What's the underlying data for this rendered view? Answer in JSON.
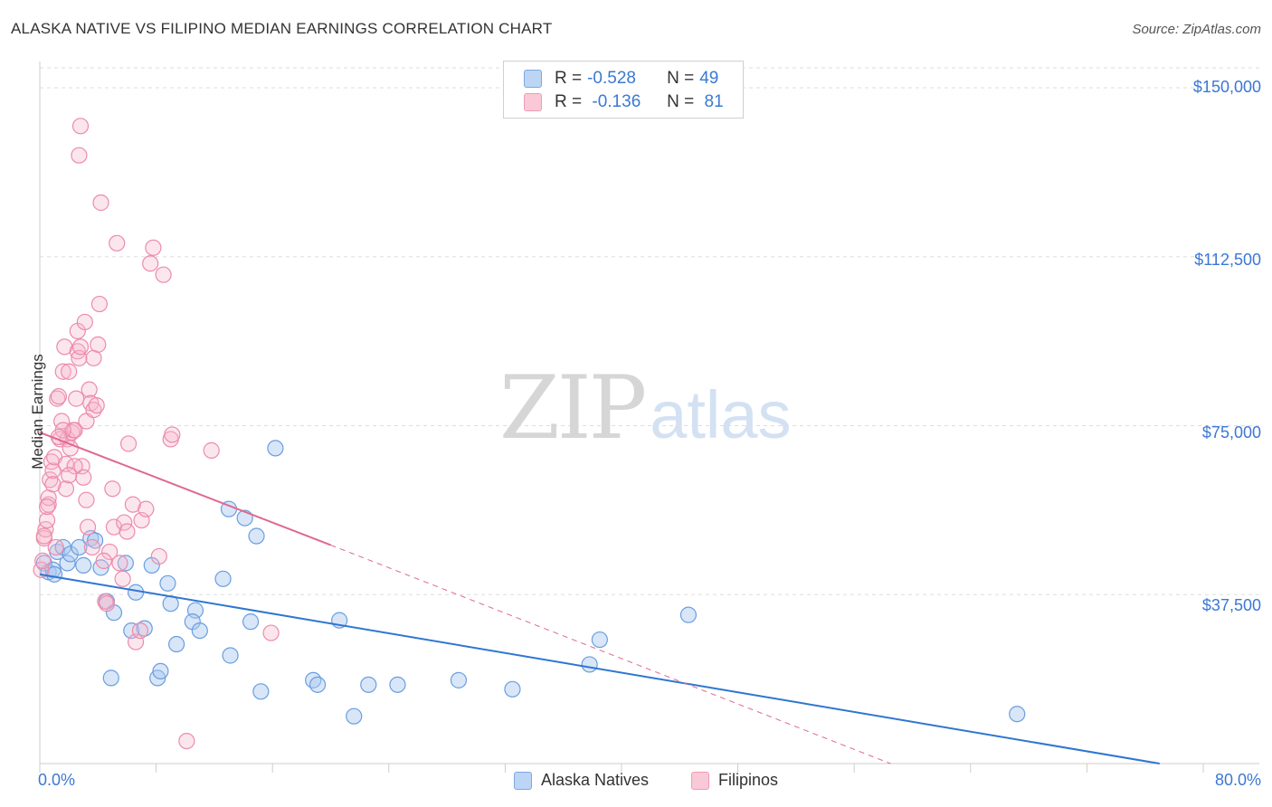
{
  "title": "ALASKA NATIVE VS FILIPINO MEDIAN EARNINGS CORRELATION CHART",
  "source": "Source: ZipAtlas.com",
  "watermark": {
    "zip": "ZIP",
    "atlas": "atlas"
  },
  "legend_top": {
    "rows": [
      {
        "r_label": "R = ",
        "r_value": "-0.528",
        "n_label": "N = ",
        "n_value": "49"
      },
      {
        "r_label": "R = ",
        "r_value": " -0.136",
        "n_label": "N = ",
        "n_value": " 81"
      }
    ]
  },
  "colors": {
    "blue_fill": "#a8c8f0",
    "blue_stroke": "#6a9ee0",
    "blue_line": "#2f76d0",
    "pink_fill": "#f7b8cc",
    "pink_stroke": "#ec8bab",
    "pink_line": "#e06890",
    "tick_text": "#3b78d4",
    "grid": "#dddddd"
  },
  "chart_data": {
    "type": "scatter",
    "title": "ALASKA NATIVE VS FILIPINO MEDIAN EARNINGS CORRELATION CHART",
    "xlabel": "",
    "ylabel": "Median Earnings",
    "xlim": [
      0,
      80
    ],
    "ylim": [
      0,
      155000
    ],
    "x_tick_labels": [
      "0.0%",
      "80.0%"
    ],
    "y_ticks": [
      37500,
      75000,
      112500,
      150000
    ],
    "y_tick_labels": [
      "$37,500",
      "$75,000",
      "$112,500",
      "$150,000"
    ],
    "legend_placement": "bottom",
    "series": [
      {
        "name": "Alaska Natives",
        "r": -0.528,
        "n": 49,
        "trend": {
          "x0": 0,
          "y0": 42000,
          "x1": 77,
          "y1": 0,
          "dashed_from": null
        },
        "points": [
          [
            0.3,
            44500
          ],
          [
            0.6,
            42500
          ],
          [
            0.9,
            43000
          ],
          [
            1.2,
            47000
          ],
          [
            1.6,
            48000
          ],
          [
            1.9,
            44500
          ],
          [
            2.1,
            46500
          ],
          [
            2.7,
            48000
          ],
          [
            3.0,
            44000
          ],
          [
            3.5,
            50000
          ],
          [
            3.8,
            49500
          ],
          [
            4.2,
            43500
          ],
          [
            4.6,
            36000
          ],
          [
            4.9,
            19000
          ],
          [
            5.1,
            33500
          ],
          [
            5.9,
            44500
          ],
          [
            6.3,
            29500
          ],
          [
            6.6,
            38000
          ],
          [
            7.2,
            30000
          ],
          [
            7.7,
            44000
          ],
          [
            8.1,
            19000
          ],
          [
            8.3,
            20500
          ],
          [
            8.8,
            40000
          ],
          [
            9.0,
            35500
          ],
          [
            9.4,
            26500
          ],
          [
            10.7,
            34000
          ],
          [
            10.5,
            31500
          ],
          [
            11.0,
            29500
          ],
          [
            12.6,
            41000
          ],
          [
            13.1,
            24000
          ],
          [
            13.0,
            56500
          ],
          [
            14.1,
            54500
          ],
          [
            14.5,
            31500
          ],
          [
            14.9,
            50500
          ],
          [
            15.2,
            16000
          ],
          [
            16.2,
            70000
          ],
          [
            18.8,
            18500
          ],
          [
            19.1,
            17500
          ],
          [
            20.6,
            31800
          ],
          [
            21.6,
            10500
          ],
          [
            22.6,
            17500
          ],
          [
            24.6,
            17500
          ],
          [
            28.8,
            18500
          ],
          [
            32.5,
            16500
          ],
          [
            37.8,
            22000
          ],
          [
            38.5,
            27500
          ],
          [
            44.6,
            33000
          ],
          [
            67.2,
            11000
          ],
          [
            1.0,
            42000
          ]
        ]
      },
      {
        "name": "Filipinos",
        "r": -0.136,
        "n": 81,
        "trend": {
          "x0": 0,
          "y0": 73500,
          "x1": 20,
          "y1": 48500,
          "dashed_to_x": 58.5,
          "dashed_to_y": 0
        },
        "points": [
          [
            0.1,
            43000
          ],
          [
            0.2,
            45000
          ],
          [
            0.3,
            50000
          ],
          [
            0.4,
            52000
          ],
          [
            0.5,
            54000
          ],
          [
            0.6,
            57500
          ],
          [
            0.6,
            59000
          ],
          [
            0.7,
            63000
          ],
          [
            0.8,
            67000
          ],
          [
            0.9,
            65000
          ],
          [
            1.0,
            68000
          ],
          [
            1.1,
            48000
          ],
          [
            1.2,
            81000
          ],
          [
            1.3,
            81500
          ],
          [
            1.4,
            72000
          ],
          [
            1.5,
            76000
          ],
          [
            1.6,
            87000
          ],
          [
            1.7,
            92500
          ],
          [
            1.8,
            61000
          ],
          [
            1.8,
            66500
          ],
          [
            1.9,
            72000
          ],
          [
            2.0,
            87000
          ],
          [
            2.1,
            70000
          ],
          [
            2.2,
            73500
          ],
          [
            2.3,
            74000
          ],
          [
            2.4,
            74000
          ],
          [
            2.5,
            81000
          ],
          [
            2.6,
            91500
          ],
          [
            2.6,
            96000
          ],
          [
            2.7,
            90000
          ],
          [
            2.8,
            92500
          ],
          [
            2.9,
            66000
          ],
          [
            3.0,
            63500
          ],
          [
            3.1,
            98000
          ],
          [
            3.2,
            76000
          ],
          [
            3.2,
            58500
          ],
          [
            3.3,
            52500
          ],
          [
            3.4,
            83000
          ],
          [
            3.5,
            80000
          ],
          [
            3.6,
            48000
          ],
          [
            3.7,
            90000
          ],
          [
            3.7,
            78500
          ],
          [
            3.9,
            79500
          ],
          [
            4.0,
            93000
          ],
          [
            4.1,
            102000
          ],
          [
            4.2,
            124500
          ],
          [
            2.8,
            141500
          ],
          [
            2.7,
            135000
          ],
          [
            4.5,
            36000
          ],
          [
            4.6,
            35500
          ],
          [
            4.8,
            47000
          ],
          [
            5.0,
            61000
          ],
          [
            5.1,
            52500
          ],
          [
            5.3,
            115500
          ],
          [
            5.5,
            44500
          ],
          [
            5.7,
            41000
          ],
          [
            5.8,
            53500
          ],
          [
            6.0,
            51500
          ],
          [
            6.1,
            71000
          ],
          [
            6.4,
            57500
          ],
          [
            6.6,
            27000
          ],
          [
            6.9,
            29500
          ],
          [
            7.0,
            54000
          ],
          [
            7.3,
            56500
          ],
          [
            7.6,
            111000
          ],
          [
            7.8,
            114500
          ],
          [
            8.2,
            46000
          ],
          [
            8.5,
            108500
          ],
          [
            9.0,
            72000
          ],
          [
            9.1,
            73000
          ],
          [
            10.1,
            5000
          ],
          [
            11.8,
            69500
          ],
          [
            15.9,
            29000
          ],
          [
            2.4,
            66000
          ],
          [
            1.6,
            74000
          ],
          [
            0.9,
            62000
          ],
          [
            0.5,
            57000
          ],
          [
            0.3,
            50500
          ],
          [
            1.3,
            72500
          ],
          [
            2.0,
            64000
          ],
          [
            4.4,
            45000
          ]
        ]
      }
    ]
  },
  "bottom_legend": {
    "series1": "Alaska Natives",
    "series2": "Filipinos"
  }
}
